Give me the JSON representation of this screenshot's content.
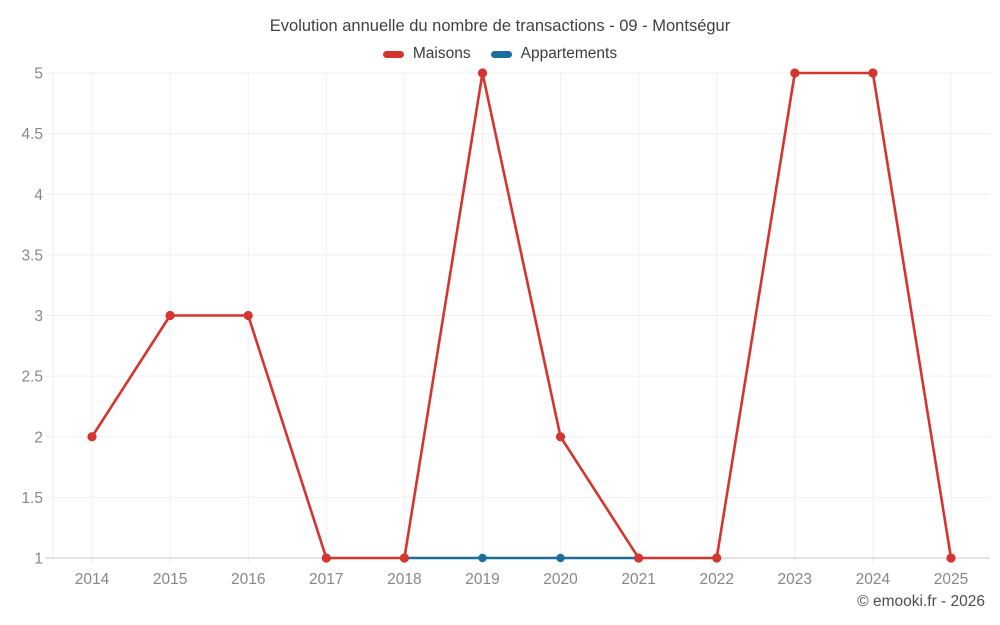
{
  "title": "Evolution annuelle du nombre de transactions - 09 - Montségur",
  "copyright": "© emooki.fr - 2026",
  "legend": [
    {
      "label": "Maisons",
      "color": "#d5342f"
    },
    {
      "label": "Appartements",
      "color": "#1a6e9c"
    }
  ],
  "colors": {
    "background": "#ffffff",
    "grid": "#efefef",
    "axis_line": "#c9c9c9",
    "tick_text": "#878787",
    "title_text": "#414141",
    "legend_text": "#3c3c3c",
    "copyright_text": "#4d4d4d",
    "maisons": "#d5342f",
    "appartements": "#1a6e9c"
  },
  "chart_data": {
    "type": "line",
    "title": "Evolution annuelle du nombre de transactions - 09 - Montségur",
    "xlabel": "",
    "ylabel": "",
    "x": [
      2014,
      2015,
      2016,
      2017,
      2018,
      2019,
      2020,
      2021,
      2022,
      2023,
      2024,
      2025
    ],
    "series": [
      {
        "name": "Maisons",
        "color": "#d5342f",
        "values": [
          2,
          3,
          3,
          1,
          1,
          5,
          2,
          1,
          1,
          5,
          5,
          1
        ]
      },
      {
        "name": "Appartements",
        "color": "#1a6e9c",
        "values": [
          null,
          null,
          null,
          null,
          1,
          1,
          1,
          1,
          null,
          null,
          null,
          null
        ]
      }
    ],
    "ylim": [
      1,
      5
    ],
    "ytick_step": 0.5,
    "yticks": [
      "1",
      "1.5",
      "2",
      "2.5",
      "3",
      "3.5",
      "4",
      "4.5",
      "5"
    ],
    "grid": true,
    "legend_position": "top"
  }
}
